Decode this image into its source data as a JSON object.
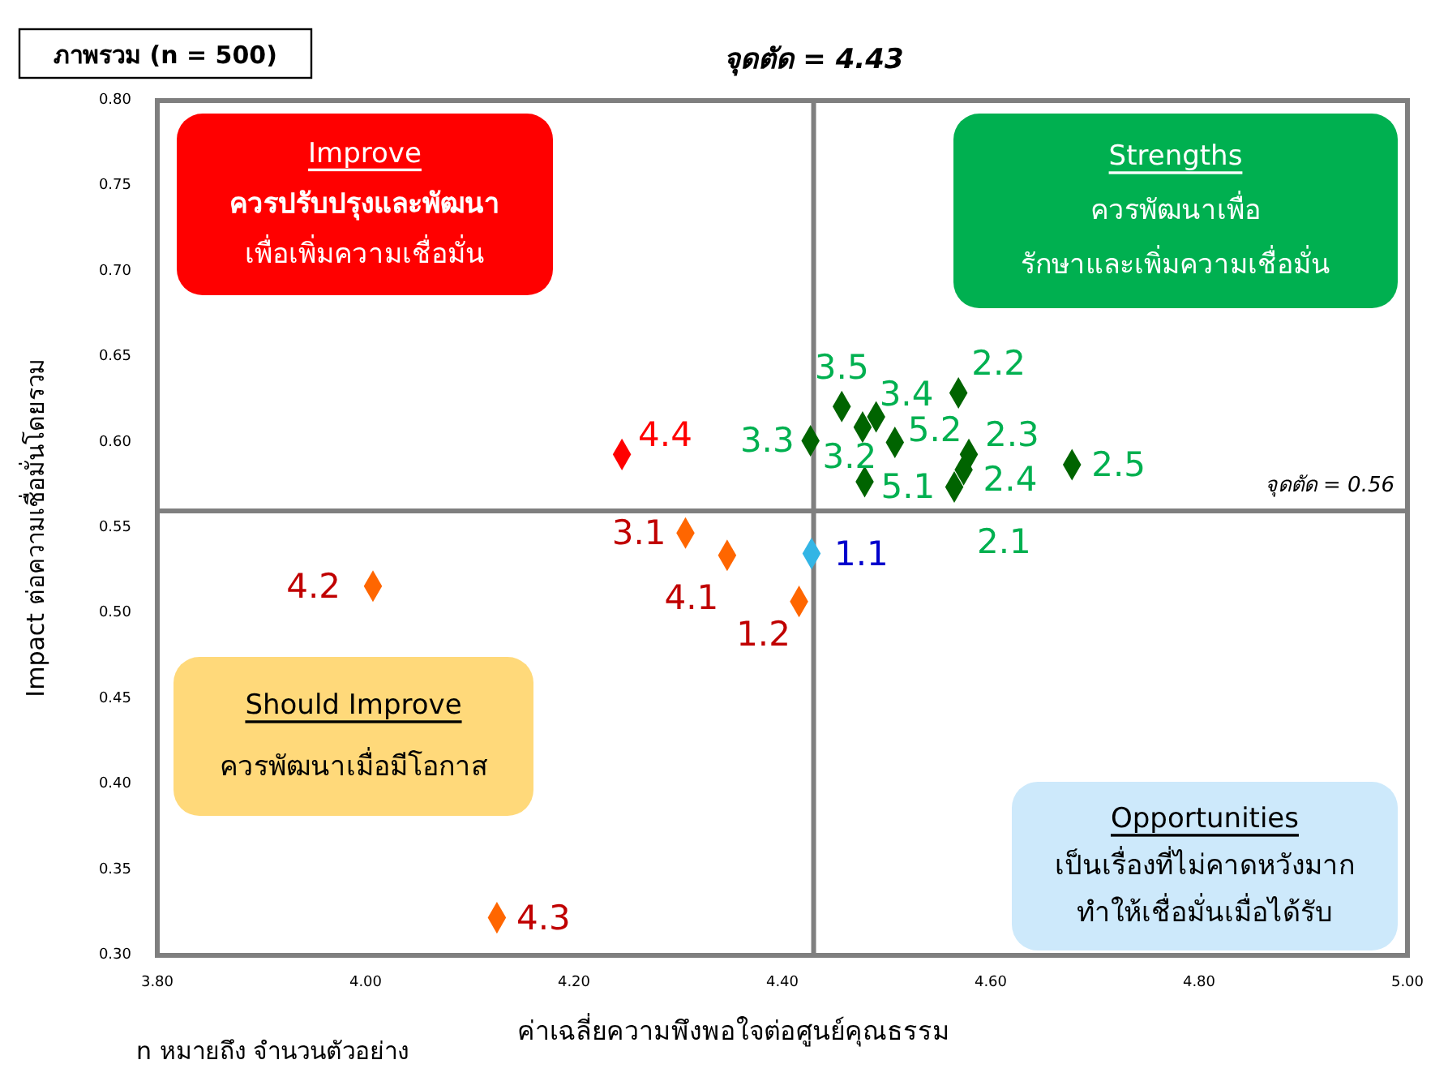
{
  "chart_data": {
    "type": "scatter",
    "title": "ภาพรวม (n = 500)",
    "xlabel": "ค่าเฉลี่ยความพึงพอใจต่อศูนย์คุณธรรม",
    "ylabel": "Impact ต่อความเชื่อมั่นโดยรวม",
    "xlim": [
      3.8,
      5.0
    ],
    "xticks": [
      {
        "value": 3.8,
        "label": "3.80"
      },
      {
        "value": 4.0,
        "label": "4.00"
      },
      {
        "value": 4.2,
        "label": "4.20"
      },
      {
        "value": 4.4,
        "label": "4.40"
      },
      {
        "value": 4.6,
        "label": "4.60"
      },
      {
        "value": 4.8,
        "label": "4.80"
      },
      {
        "value": 5.0,
        "label": "5.00"
      }
    ],
    "ylim": [
      0.3,
      0.8
    ],
    "yticks": [
      {
        "value": 0.3,
        "label": "0.30"
      },
      {
        "value": 0.35,
        "label": "0.35"
      },
      {
        "value": 0.4,
        "label": "0.40"
      },
      {
        "value": 0.45,
        "label": "0.45"
      },
      {
        "value": 0.5,
        "label": "0.50"
      },
      {
        "value": 0.55,
        "label": "0.55"
      },
      {
        "value": 0.6,
        "label": "0.60"
      },
      {
        "value": 0.65,
        "label": "0.65"
      },
      {
        "value": 0.7,
        "label": "0.70"
      },
      {
        "value": 0.75,
        "label": "0.75"
      },
      {
        "value": 0.8,
        "label": "0.80"
      }
    ],
    "grid": false,
    "marker": "diamond",
    "series": [
      {
        "color": "#006400",
        "x": [
          4.427,
          4.457,
          4.49,
          4.477,
          4.508,
          4.479,
          4.569,
          4.579,
          4.574,
          4.565,
          4.678
        ],
        "values": [
          0.601,
          0.621,
          0.615,
          0.609,
          0.6,
          0.577,
          0.629,
          0.593,
          0.584,
          0.574,
          0.587
        ]
      },
      {
        "color": "#ff0000",
        "x": [
          4.246
        ],
        "values": [
          0.593
        ]
      },
      {
        "color": "#ff6600",
        "x": [
          4.007,
          4.126,
          4.307,
          4.347,
          4.416
        ],
        "values": [
          0.516,
          0.322,
          0.547,
          0.534,
          0.507
        ]
      },
      {
        "color": "#33b5e5",
        "x": [
          4.428
        ],
        "values": [
          0.535
        ]
      }
    ],
    "ref_lines": [
      {
        "axis": "x",
        "value": 4.43,
        "label": "จุดตัด = 4.43",
        "color": "#7f7f7f"
      },
      {
        "axis": "y",
        "value": 0.56,
        "label": "จุดตัด = 0.56",
        "color": "#7f7f7f"
      }
    ],
    "annotations": [
      "Improve\nควรปรับปรุงและพัฒนา\nเพื่อเพิ่มความเชื่อมั่น",
      "Strengths\nควรพัฒนาเพื่อ\nรักษาและเพิ่มความเชื่อมั่น",
      "Should Improve\nควรพัฒนาเมื่อมีโอกาส",
      "Opportunities\nเป็นเรื่องที่ไม่คาดหวังมาก\nทำให้เชื่อมั่นเมื่อได้รับ",
      "n หมายถึง จำนวนตัวอย่าง",
      {
        "text": "3.3",
        "x": 4.427,
        "y": 0.601
      },
      {
        "text": "3.5",
        "x": 4.457,
        "y": 0.621
      },
      {
        "text": "3.4",
        "x": 4.49,
        "y": 0.615
      },
      {
        "text": "3.2",
        "x": 4.477,
        "y": 0.609
      },
      {
        "text": "5.2",
        "x": 4.508,
        "y": 0.6
      },
      {
        "text": "5.1",
        "x": 4.479,
        "y": 0.577
      },
      {
        "text": "2.2",
        "x": 4.569,
        "y": 0.629
      },
      {
        "text": "2.3",
        "x": 4.579,
        "y": 0.593
      },
      {
        "text": "2.4",
        "x": 4.574,
        "y": 0.584
      },
      {
        "text": "2.1",
        "x": 4.565,
        "y": 0.574
      },
      {
        "text": "2.5",
        "x": 4.678,
        "y": 0.587
      },
      {
        "text": "4.4",
        "x": 4.246,
        "y": 0.593
      },
      {
        "text": "4.2",
        "x": 4.007,
        "y": 0.516
      },
      {
        "text": "4.3",
        "x": 4.126,
        "y": 0.322
      },
      {
        "text": "3.1",
        "x": 4.307,
        "y": 0.547
      },
      {
        "text": "4.1",
        "x": 4.347,
        "y": 0.534
      },
      {
        "text": "1.2",
        "x": 4.416,
        "y": 0.507
      },
      {
        "text": "1.1",
        "x": 4.428,
        "y": 0.535
      }
    ]
  }
}
